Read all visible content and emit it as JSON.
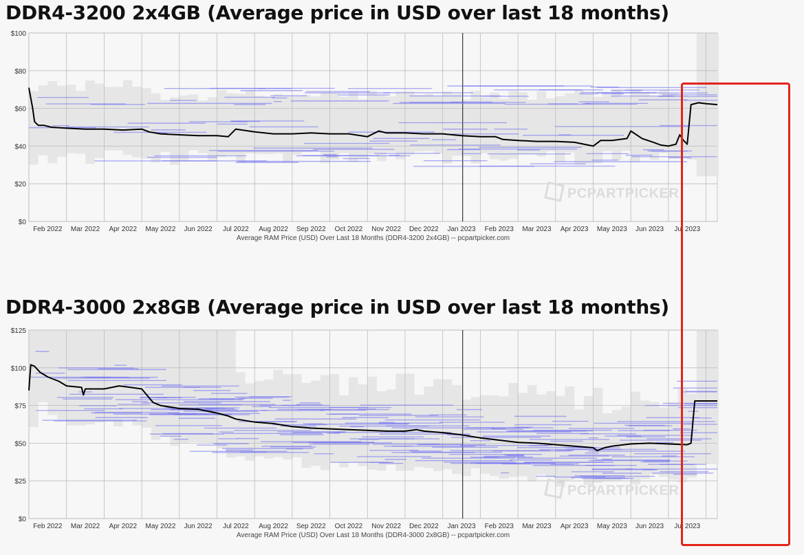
{
  "colors": {
    "price_line": "#000000",
    "retailer_lines": "#6c6cf0",
    "band_fill": "#e6e6e6",
    "grid": "#bbbbbb",
    "highlight": "#e2231a"
  },
  "chart_data": [
    {
      "type": "line",
      "title": "DDR4-3200 2x4GB (Average price in USD over last 18 months)",
      "xlabel": "Average RAM Price (USD) Over Last 18 Months (DDR4-3200 2x4GB) -- pcpartpicker.com",
      "ylabel": "",
      "watermark": "PCPARTPICKER",
      "ylim": [
        0,
        100
      ],
      "yticks": [
        "$0",
        "$20",
        "$40",
        "$60",
        "$80",
        "$100"
      ],
      "ytick_values": [
        0,
        20,
        40,
        60,
        80,
        100
      ],
      "xlim": [
        0,
        18.3
      ],
      "xticks": [
        "Feb 2022",
        "Mar 2022",
        "Apr 2022",
        "May 2022",
        "Jun 2022",
        "Jul 2022",
        "Aug 2022",
        "Sep 2022",
        "Oct 2022",
        "Nov 2022",
        "Dec 2022",
        "Jan 2023",
        "Feb 2023",
        "Mar 2023",
        "Apr 2023",
        "May 2023",
        "Jun 2023",
        "Jul 2023"
      ],
      "series": [
        {
          "name": "Average price",
          "x": [
            0,
            0.1,
            0.15,
            0.25,
            0.4,
            0.6,
            1.0,
            1.5,
            2.0,
            2.5,
            3.0,
            3.2,
            3.5,
            4.0,
            4.5,
            5.0,
            5.3,
            5.5,
            6.0,
            6.5,
            7.0,
            7.5,
            8.0,
            8.5,
            9.0,
            9.3,
            9.5,
            10.0,
            10.5,
            11.0,
            11.5,
            12.0,
            12.4,
            12.6,
            13.0,
            13.5,
            14.0,
            14.5,
            15.0,
            15.2,
            15.5,
            15.9,
            16.0,
            16.3,
            16.6,
            16.8,
            17.0,
            17.2,
            17.3,
            17.4,
            17.5,
            17.6,
            17.8,
            18.0,
            18.3
          ],
          "y": [
            71,
            60,
            53,
            51,
            51,
            50,
            49.5,
            49,
            49,
            48.5,
            49,
            47.5,
            46.5,
            46,
            45.5,
            45.5,
            45,
            49,
            47.5,
            46.5,
            46.5,
            47,
            46.5,
            46.5,
            45,
            48,
            47,
            47,
            46.5,
            46.5,
            45.5,
            45,
            45,
            43.5,
            43,
            42.5,
            42.5,
            42,
            40,
            43,
            43,
            44,
            48,
            44,
            42,
            40.5,
            40,
            41,
            46,
            43,
            41,
            62,
            63,
            62.5,
            62
          ]
        }
      ]
    },
    {
      "type": "line",
      "title": "DDR4-3000 2x8GB (Average price in USD over last 18 months)",
      "xlabel": "Average RAM Price (USD) Over Last 18 Months (DDR4-3000 2x8GB) -- pcpartpicker.com",
      "ylabel": "",
      "watermark": "PCPARTPICKER",
      "ylim": [
        0,
        125
      ],
      "yticks": [
        "$0",
        "$25",
        "$50",
        "$75",
        "$100",
        "$125"
      ],
      "ytick_values": [
        0,
        25,
        50,
        75,
        100,
        125
      ],
      "xlim": [
        0,
        18.3
      ],
      "xticks": [
        "Feb 2022",
        "Mar 2022",
        "Apr 2022",
        "May 2022",
        "Jun 2022",
        "Jul 2022",
        "Aug 2022",
        "Sep 2022",
        "Oct 2022",
        "Nov 2022",
        "Dec 2022",
        "Jan 2023",
        "Feb 2023",
        "Mar 2023",
        "Apr 2023",
        "May 2023",
        "Jun 2023",
        "Jul 2023"
      ],
      "series": [
        {
          "name": "Average price",
          "x": [
            0,
            0.05,
            0.15,
            0.3,
            0.5,
            0.8,
            1.0,
            1.4,
            1.45,
            1.5,
            2.0,
            2.4,
            2.7,
            3.0,
            3.1,
            3.3,
            3.5,
            4.0,
            4.5,
            5.0,
            5.3,
            5.5,
            6.0,
            6.5,
            7.0,
            7.5,
            8.0,
            8.5,
            9.0,
            9.5,
            10.0,
            10.3,
            10.5,
            11.0,
            11.5,
            12.0,
            12.5,
            13.0,
            13.5,
            14.0,
            14.5,
            15.0,
            15.1,
            15.3,
            15.5,
            16.0,
            16.5,
            17.0,
            17.5,
            17.6,
            17.7,
            18.0,
            18.3
          ],
          "y": [
            85,
            102,
            101,
            97,
            94,
            91,
            88,
            87,
            82,
            86,
            86,
            88,
            87,
            86,
            83,
            77,
            75,
            73,
            72.5,
            70,
            68,
            66,
            64,
            63,
            61,
            60,
            59.5,
            59,
            58.5,
            58,
            58,
            59,
            58,
            57,
            55.5,
            53.5,
            52,
            50.5,
            50,
            49,
            48,
            47,
            45,
            47,
            48,
            49.5,
            50,
            49.5,
            49,
            50,
            78,
            78,
            78
          ]
        }
      ]
    }
  ]
}
